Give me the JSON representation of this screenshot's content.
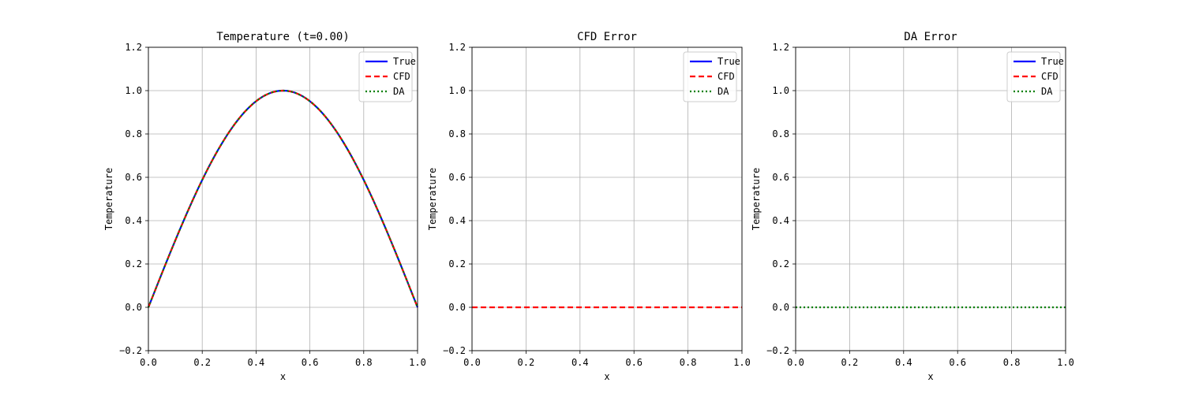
{
  "chart_data": [
    {
      "type": "line",
      "title": "Temperature (t=0.00)",
      "xlabel": "x",
      "ylabel": "Temperature",
      "xlim": [
        0.0,
        1.0
      ],
      "ylim": [
        -0.2,
        1.2
      ],
      "xticks": [
        "0.0",
        "0.2",
        "0.4",
        "0.6",
        "0.8",
        "1.0"
      ],
      "yticks": [
        "−0.2",
        "0.0",
        "0.2",
        "0.4",
        "0.6",
        "0.8",
        "1.0",
        "1.2"
      ],
      "grid": true,
      "legend": "top-right",
      "series": [
        {
          "name": "True",
          "color": "#0000ff",
          "style": "solid",
          "function": "sin(pi*x)",
          "x_range": [
            0.0,
            1.0
          ]
        },
        {
          "name": "CFD",
          "color": "#ff0000",
          "style": "dashed",
          "function": "sin(pi*x)",
          "x_range": [
            0.0,
            1.0
          ]
        },
        {
          "name": "DA",
          "color": "#008000",
          "style": "dotted",
          "function": "sin(pi*x)",
          "x_range": [
            0.0,
            1.0
          ]
        }
      ]
    },
    {
      "type": "line",
      "title": "CFD Error",
      "xlabel": "x",
      "ylabel": "Temperature",
      "xlim": [
        0.0,
        1.0
      ],
      "ylim": [
        -0.2,
        1.2
      ],
      "xticks": [
        "0.0",
        "0.2",
        "0.4",
        "0.6",
        "0.8",
        "1.0"
      ],
      "yticks": [
        "−0.2",
        "0.0",
        "0.2",
        "0.4",
        "0.6",
        "0.8",
        "1.0",
        "1.2"
      ],
      "grid": true,
      "legend": "top-right",
      "series": [
        {
          "name": "True",
          "color": "#0000ff",
          "style": "solid",
          "function": "none"
        },
        {
          "name": "CFD",
          "color": "#ff0000",
          "style": "dashed",
          "function": "0",
          "x_range": [
            0.0,
            1.0
          ]
        },
        {
          "name": "DA",
          "color": "#008000",
          "style": "dotted",
          "function": "none"
        }
      ]
    },
    {
      "type": "line",
      "title": "DA Error",
      "xlabel": "x",
      "ylabel": "Temperature",
      "xlim": [
        0.0,
        1.0
      ],
      "ylim": [
        -0.2,
        1.2
      ],
      "xticks": [
        "0.0",
        "0.2",
        "0.4",
        "0.6",
        "0.8",
        "1.0"
      ],
      "yticks": [
        "−0.2",
        "0.0",
        "0.2",
        "0.4",
        "0.6",
        "0.8",
        "1.0",
        "1.2"
      ],
      "grid": true,
      "legend": "top-right",
      "series": [
        {
          "name": "True",
          "color": "#0000ff",
          "style": "solid",
          "function": "none"
        },
        {
          "name": "CFD",
          "color": "#ff0000",
          "style": "dashed",
          "function": "none"
        },
        {
          "name": "DA",
          "color": "#008000",
          "style": "dotted",
          "function": "0",
          "x_range": [
            0.0,
            1.0
          ]
        }
      ]
    }
  ]
}
